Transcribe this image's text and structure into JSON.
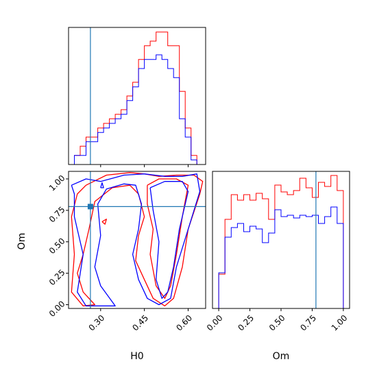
{
  "colors": {
    "series_1": "#ff0000",
    "series_2": "#0000ff",
    "truth": "#1f77b4",
    "frame": "#000000"
  },
  "axis_labels": {
    "h0": "H0",
    "om": "Om"
  },
  "chart_data": [
    {
      "type": "histogram",
      "panel": "H0 marginal (top-left)",
      "xlabel": "",
      "ylabel": "",
      "xlim": [
        0.19,
        0.66
      ],
      "ylim": [
        0,
        30
      ],
      "x_ticks": [
        0.3,
        0.45,
        0.6
      ],
      "x_tick_labels_shown": false,
      "y_ticks_shown": false,
      "truth_x": 0.265,
      "bin_edges": [
        0.19,
        0.21,
        0.23,
        0.25,
        0.27,
        0.29,
        0.31,
        0.33,
        0.35,
        0.37,
        0.39,
        0.41,
        0.43,
        0.45,
        0.47,
        0.49,
        0.51,
        0.53,
        0.55,
        0.57,
        0.59,
        0.61,
        0.63,
        0.65
      ],
      "series": [
        {
          "color": "red",
          "values": [
            0,
            2,
            4,
            6,
            6,
            8,
            9,
            10,
            11,
            12,
            15,
            18,
            23,
            26,
            27,
            29,
            29,
            26,
            26,
            16,
            8,
            2,
            0
          ]
        },
        {
          "color": "blue",
          "values": [
            0,
            2,
            2,
            5,
            5,
            7,
            8,
            9,
            10,
            11,
            14,
            17,
            21,
            23,
            23,
            24,
            23,
            21,
            19,
            10,
            6,
            1,
            0
          ]
        }
      ]
    },
    {
      "type": "contour",
      "panel": "H0 vs Om joint (bottom-left)",
      "xlabel": "H0",
      "ylabel": "Om",
      "xlim": [
        0.19,
        0.66
      ],
      "ylim": [
        -0.03,
        1.06
      ],
      "x_ticks": [
        0.3,
        0.45,
        0.6
      ],
      "x_tick_labels": [
        "0.30",
        "0.45",
        "0.60"
      ],
      "y_ticks": [
        0,
        0.25,
        0.5,
        0.75,
        1
      ],
      "y_tick_labels": [
        "0.00",
        "0.25",
        "0.50",
        "0.75",
        "1.00"
      ],
      "truth": {
        "x": 0.265,
        "y": 0.78
      },
      "series": [
        {
          "color": "red",
          "contours": [
            [
              [
                0.25,
                0.95
              ],
              [
                0.32,
                1.03
              ],
              [
                0.4,
                1.05
              ],
              [
                0.45,
                1.04
              ],
              [
                0.5,
                1.02
              ],
              [
                0.56,
                1.03
              ],
              [
                0.62,
                1.03
              ],
              [
                0.65,
                0.98
              ],
              [
                0.64,
                0.88
              ],
              [
                0.6,
                0.6
              ],
              [
                0.58,
                0.3
              ],
              [
                0.55,
                0.05
              ],
              [
                0.52,
                -0.01
              ],
              [
                0.48,
                0.05
              ],
              [
                0.45,
                0.2
              ],
              [
                0.42,
                0.35
              ],
              [
                0.43,
                0.55
              ],
              [
                0.45,
                0.7
              ],
              [
                0.43,
                0.88
              ],
              [
                0.4,
                0.95
              ],
              [
                0.34,
                0.93
              ],
              [
                0.28,
                0.82
              ],
              [
                0.26,
                0.6
              ],
              [
                0.24,
                0.4
              ],
              [
                0.22,
                0.25
              ],
              [
                0.24,
                0.1
              ],
              [
                0.28,
                0.0
              ],
              [
                0.24,
                -0.01
              ],
              [
                0.2,
                0.1
              ],
              [
                0.21,
                0.4
              ],
              [
                0.2,
                0.7
              ],
              [
                0.22,
                0.88
              ],
              [
                0.25,
                0.95
              ]
            ],
            [
              [
                0.46,
                0.95
              ],
              [
                0.5,
                1.0
              ],
              [
                0.56,
                1.0
              ],
              [
                0.6,
                0.95
              ],
              [
                0.58,
                0.7
              ],
              [
                0.56,
                0.4
              ],
              [
                0.54,
                0.15
              ],
              [
                0.52,
                0.05
              ],
              [
                0.49,
                0.15
              ],
              [
                0.47,
                0.4
              ],
              [
                0.48,
                0.6
              ],
              [
                0.46,
                0.8
              ],
              [
                0.46,
                0.95
              ]
            ],
            [
              [
                0.305,
                0.66
              ],
              [
                0.32,
                0.68
              ],
              [
                0.315,
                0.64
              ],
              [
                0.305,
                0.66
              ]
            ]
          ]
        },
        {
          "color": "blue",
          "contours": [
            [
              [
                0.2,
                0.95
              ],
              [
                0.25,
                1.0
              ],
              [
                0.3,
                0.98
              ],
              [
                0.38,
                1.03
              ],
              [
                0.45,
                1.04
              ],
              [
                0.52,
                1.02
              ],
              [
                0.58,
                1.02
              ],
              [
                0.63,
                1.04
              ],
              [
                0.64,
                0.9
              ],
              [
                0.6,
                0.6
              ],
              [
                0.56,
                0.3
              ],
              [
                0.54,
                0.05
              ],
              [
                0.5,
                0.0
              ],
              [
                0.46,
                0.05
              ],
              [
                0.43,
                0.2
              ],
              [
                0.41,
                0.4
              ],
              [
                0.43,
                0.6
              ],
              [
                0.44,
                0.8
              ],
              [
                0.42,
                0.95
              ],
              [
                0.38,
                0.96
              ],
              [
                0.32,
                0.92
              ],
              [
                0.29,
                0.8
              ],
              [
                0.3,
                0.55
              ],
              [
                0.28,
                0.3
              ],
              [
                0.3,
                0.15
              ],
              [
                0.35,
                -0.01
              ],
              [
                0.25,
                -0.01
              ],
              [
                0.22,
                0.1
              ],
              [
                0.24,
                0.4
              ],
              [
                0.21,
                0.7
              ],
              [
                0.21,
                0.88
              ],
              [
                0.2,
                0.95
              ]
            ],
            [
              [
                0.47,
                0.93
              ],
              [
                0.52,
                0.98
              ],
              [
                0.58,
                0.98
              ],
              [
                0.6,
                0.9
              ],
              [
                0.57,
                0.6
              ],
              [
                0.55,
                0.3
              ],
              [
                0.53,
                0.1
              ],
              [
                0.51,
                0.05
              ],
              [
                0.49,
                0.2
              ],
              [
                0.5,
                0.5
              ],
              [
                0.48,
                0.75
              ],
              [
                0.47,
                0.93
              ]
            ],
            [
              [
                0.3,
                0.93
              ],
              [
                0.305,
                0.97
              ],
              [
                0.31,
                0.93
              ],
              [
                0.3,
                0.93
              ]
            ]
          ]
        }
      ]
    },
    {
      "type": "histogram",
      "panel": "Om marginal (bottom-right)",
      "xlabel": "Om",
      "ylabel": "",
      "xlim": [
        -0.05,
        1.05
      ],
      "ylim": [
        0,
        100
      ],
      "x_ticks": [
        0,
        0.25,
        0.5,
        0.75,
        1
      ],
      "x_tick_labels": [
        "0.00",
        "0.25",
        "0.50",
        "0.75",
        "1.00"
      ],
      "y_ticks_shown": false,
      "truth_x": 0.78,
      "bin_edges": [
        0.0,
        0.05,
        0.1,
        0.15,
        0.2,
        0.25,
        0.3,
        0.35,
        0.4,
        0.45,
        0.5,
        0.55,
        0.6,
        0.65,
        0.7,
        0.75,
        0.8,
        0.85,
        0.9,
        0.95,
        1.0
      ],
      "series": [
        {
          "color": "red",
          "values": [
            25,
            65,
            83,
            79,
            83,
            79,
            84,
            80,
            65,
            90,
            85,
            83,
            86,
            95,
            88,
            81,
            92,
            89,
            97,
            86
          ]
        },
        {
          "color": "blue",
          "values": [
            26,
            52,
            59,
            62,
            56,
            60,
            58,
            48,
            55,
            72,
            67,
            68,
            66,
            68,
            67,
            68,
            62,
            67,
            74,
            62
          ]
        }
      ]
    }
  ]
}
